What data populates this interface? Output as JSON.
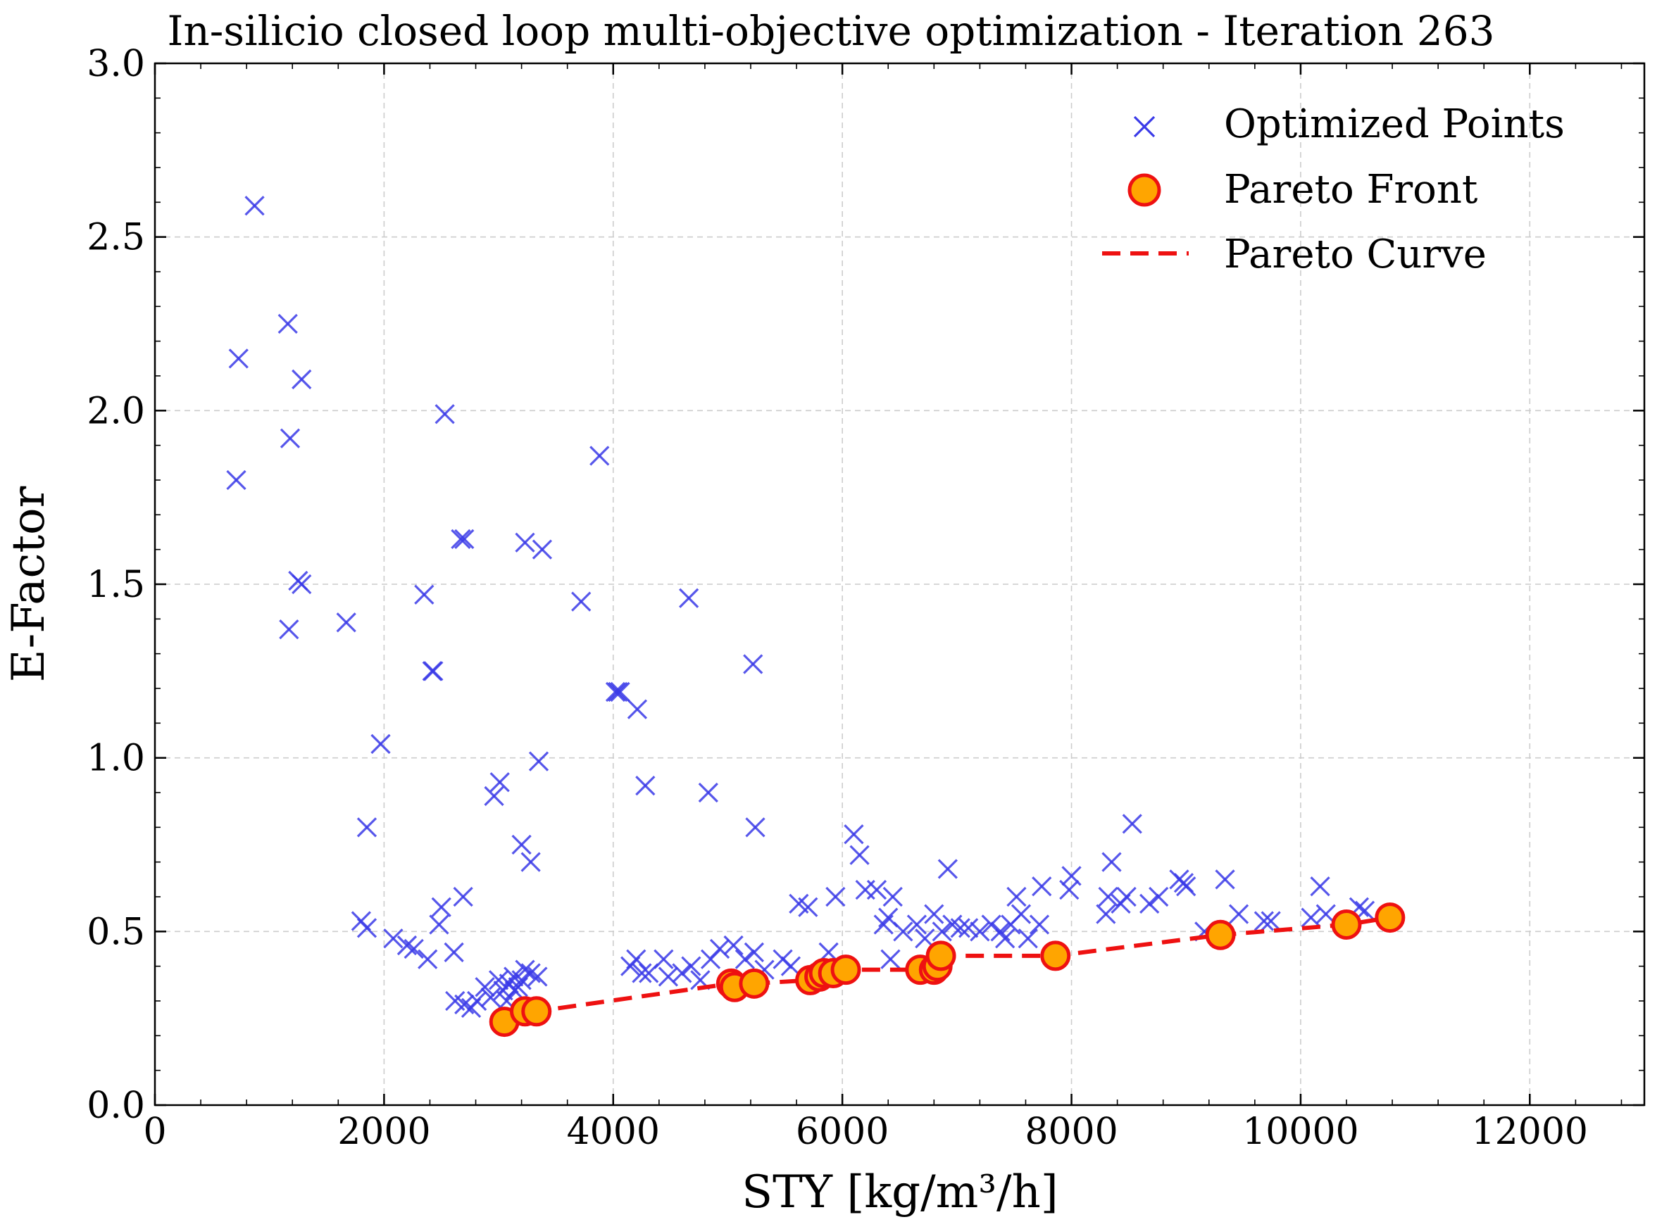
{
  "chart_data": {
    "type": "scatter",
    "title": "In-silicio closed loop multi-objective optimization - Iteration 263",
    "xlabel": "STY [kg/m³/h]",
    "ylabel": "E-Factor",
    "xlim": [
      0,
      13000
    ],
    "ylim": [
      0.0,
      3.0
    ],
    "x_ticks": [
      0,
      2000,
      4000,
      6000,
      8000,
      10000,
      12000
    ],
    "y_ticks": [
      0.0,
      0.5,
      1.0,
      1.5,
      2.0,
      2.5,
      3.0
    ],
    "x_tick_labels": [
      "0",
      "2000",
      "4000",
      "6000",
      "8000",
      "10000",
      "12000"
    ],
    "y_tick_labels": [
      "0.0",
      "0.5",
      "1.0",
      "1.5",
      "2.0",
      "2.5",
      "3.0"
    ],
    "grid": true,
    "legend_position": "top-right",
    "colors": {
      "optimized": "#3a3ae8",
      "pareto_fill": "#ffa500",
      "pareto_edge": "#ee1111",
      "pareto_curve": "#ee1111"
    },
    "series": [
      {
        "name": "Optimized Points",
        "kind": "scatter",
        "marker": "x",
        "points": [
          [
            870,
            2.59
          ],
          [
            730,
            2.15
          ],
          [
            1160,
            2.25
          ],
          [
            1280,
            2.09
          ],
          [
            1180,
            1.92
          ],
          [
            710,
            1.8
          ],
          [
            1250,
            1.51
          ],
          [
            1280,
            1.5
          ],
          [
            1170,
            1.37
          ],
          [
            1670,
            1.39
          ],
          [
            2350,
            1.47
          ],
          [
            2420,
            1.25
          ],
          [
            2430,
            1.25
          ],
          [
            2530,
            1.99
          ],
          [
            2670,
            1.63
          ],
          [
            2700,
            1.63
          ],
          [
            3230,
            1.62
          ],
          [
            3380,
            1.6
          ],
          [
            3880,
            1.87
          ],
          [
            3720,
            1.45
          ],
          [
            4040,
            1.19
          ],
          [
            4020,
            1.19
          ],
          [
            4060,
            1.19
          ],
          [
            4210,
            1.14
          ],
          [
            4280,
            0.92
          ],
          [
            4660,
            1.46
          ],
          [
            5220,
            1.27
          ],
          [
            1970,
            1.04
          ],
          [
            1850,
            0.8
          ],
          [
            2960,
            0.89
          ],
          [
            3010,
            0.93
          ],
          [
            3350,
            0.99
          ],
          [
            3200,
            0.75
          ],
          [
            3280,
            0.7
          ],
          [
            4830,
            0.9
          ],
          [
            5240,
            0.8
          ],
          [
            1800,
            0.53
          ],
          [
            1850,
            0.51
          ],
          [
            2080,
            0.48
          ],
          [
            2200,
            0.46
          ],
          [
            2260,
            0.45
          ],
          [
            2380,
            0.42
          ],
          [
            2500,
            0.57
          ],
          [
            2480,
            0.52
          ],
          [
            2610,
            0.44
          ],
          [
            2690,
            0.6
          ],
          [
            2620,
            0.3
          ],
          [
            2700,
            0.29
          ],
          [
            2760,
            0.28
          ],
          [
            2810,
            0.3
          ],
          [
            2880,
            0.34
          ],
          [
            2930,
            0.31
          ],
          [
            3000,
            0.36
          ],
          [
            3040,
            0.33
          ],
          [
            3090,
            0.35
          ],
          [
            3130,
            0.37
          ],
          [
            3170,
            0.34
          ],
          [
            3230,
            0.39
          ],
          [
            3280,
            0.38
          ],
          [
            3340,
            0.37
          ],
          [
            3070,
            0.3
          ],
          [
            3140,
            0.33
          ],
          [
            3200,
            0.36
          ],
          [
            4150,
            0.4
          ],
          [
            4200,
            0.42
          ],
          [
            4250,
            0.38
          ],
          [
            4310,
            0.38
          ],
          [
            4440,
            0.42
          ],
          [
            4480,
            0.37
          ],
          [
            4600,
            0.38
          ],
          [
            4680,
            0.4
          ],
          [
            4760,
            0.36
          ],
          [
            4850,
            0.42
          ],
          [
            4930,
            0.45
          ],
          [
            5050,
            0.46
          ],
          [
            5150,
            0.42
          ],
          [
            5230,
            0.44
          ],
          [
            5320,
            0.39
          ],
          [
            5480,
            0.42
          ],
          [
            5550,
            0.4
          ],
          [
            5620,
            0.58
          ],
          [
            5700,
            0.57
          ],
          [
            5880,
            0.44
          ],
          [
            5940,
            0.6
          ],
          [
            6100,
            0.78
          ],
          [
            6150,
            0.72
          ],
          [
            6200,
            0.62
          ],
          [
            6300,
            0.62
          ],
          [
            6360,
            0.52
          ],
          [
            6400,
            0.54
          ],
          [
            6440,
            0.6
          ],
          [
            6420,
            0.42
          ],
          [
            6530,
            0.5
          ],
          [
            6650,
            0.52
          ],
          [
            6720,
            0.48
          ],
          [
            6800,
            0.55
          ],
          [
            6870,
            0.5
          ],
          [
            6920,
            0.68
          ],
          [
            6960,
            0.52
          ],
          [
            7030,
            0.51
          ],
          [
            7100,
            0.51
          ],
          [
            7200,
            0.5
          ],
          [
            7300,
            0.52
          ],
          [
            7380,
            0.5
          ],
          [
            7420,
            0.48
          ],
          [
            7470,
            0.52
          ],
          [
            7520,
            0.6
          ],
          [
            7560,
            0.55
          ],
          [
            7620,
            0.48
          ],
          [
            7720,
            0.52
          ],
          [
            7740,
            0.63
          ],
          [
            7980,
            0.62
          ],
          [
            8000,
            0.66
          ],
          [
            8300,
            0.55
          ],
          [
            8320,
            0.6
          ],
          [
            8350,
            0.7
          ],
          [
            8430,
            0.58
          ],
          [
            8480,
            0.6
          ],
          [
            8530,
            0.81
          ],
          [
            8680,
            0.58
          ],
          [
            8760,
            0.6
          ],
          [
            8940,
            0.65
          ],
          [
            8980,
            0.64
          ],
          [
            9000,
            0.63
          ],
          [
            9160,
            0.5
          ],
          [
            9340,
            0.65
          ],
          [
            9460,
            0.55
          ],
          [
            9680,
            0.53
          ],
          [
            9740,
            0.53
          ],
          [
            10090,
            0.54
          ],
          [
            10170,
            0.63
          ],
          [
            10220,
            0.55
          ],
          [
            10510,
            0.57
          ],
          [
            10560,
            0.56
          ]
        ]
      },
      {
        "name": "Pareto Front",
        "kind": "scatter",
        "marker": "o",
        "points": [
          [
            3050,
            0.24
          ],
          [
            3230,
            0.27
          ],
          [
            3330,
            0.27
          ],
          [
            5030,
            0.35
          ],
          [
            5060,
            0.34
          ],
          [
            5230,
            0.35
          ],
          [
            5720,
            0.36
          ],
          [
            5800,
            0.37
          ],
          [
            5840,
            0.38
          ],
          [
            5920,
            0.38
          ],
          [
            6030,
            0.39
          ],
          [
            6680,
            0.39
          ],
          [
            6800,
            0.39
          ],
          [
            6830,
            0.4
          ],
          [
            6860,
            0.43
          ],
          [
            7860,
            0.43
          ],
          [
            9300,
            0.49
          ],
          [
            10400,
            0.52
          ],
          [
            10780,
            0.54
          ]
        ]
      },
      {
        "name": "Pareto Curve",
        "kind": "line",
        "style": "dashed",
        "points": [
          [
            3050,
            0.24
          ],
          [
            3230,
            0.27
          ],
          [
            3330,
            0.27
          ],
          [
            5030,
            0.35
          ],
          [
            5060,
            0.34
          ],
          [
            5230,
            0.35
          ],
          [
            5720,
            0.36
          ],
          [
            5800,
            0.37
          ],
          [
            5840,
            0.38
          ],
          [
            5920,
            0.38
          ],
          [
            6030,
            0.39
          ],
          [
            6680,
            0.39
          ],
          [
            6800,
            0.39
          ],
          [
            6830,
            0.4
          ],
          [
            6860,
            0.43
          ],
          [
            7860,
            0.43
          ],
          [
            9300,
            0.49
          ],
          [
            10400,
            0.52
          ],
          [
            10780,
            0.54
          ]
        ]
      }
    ]
  }
}
